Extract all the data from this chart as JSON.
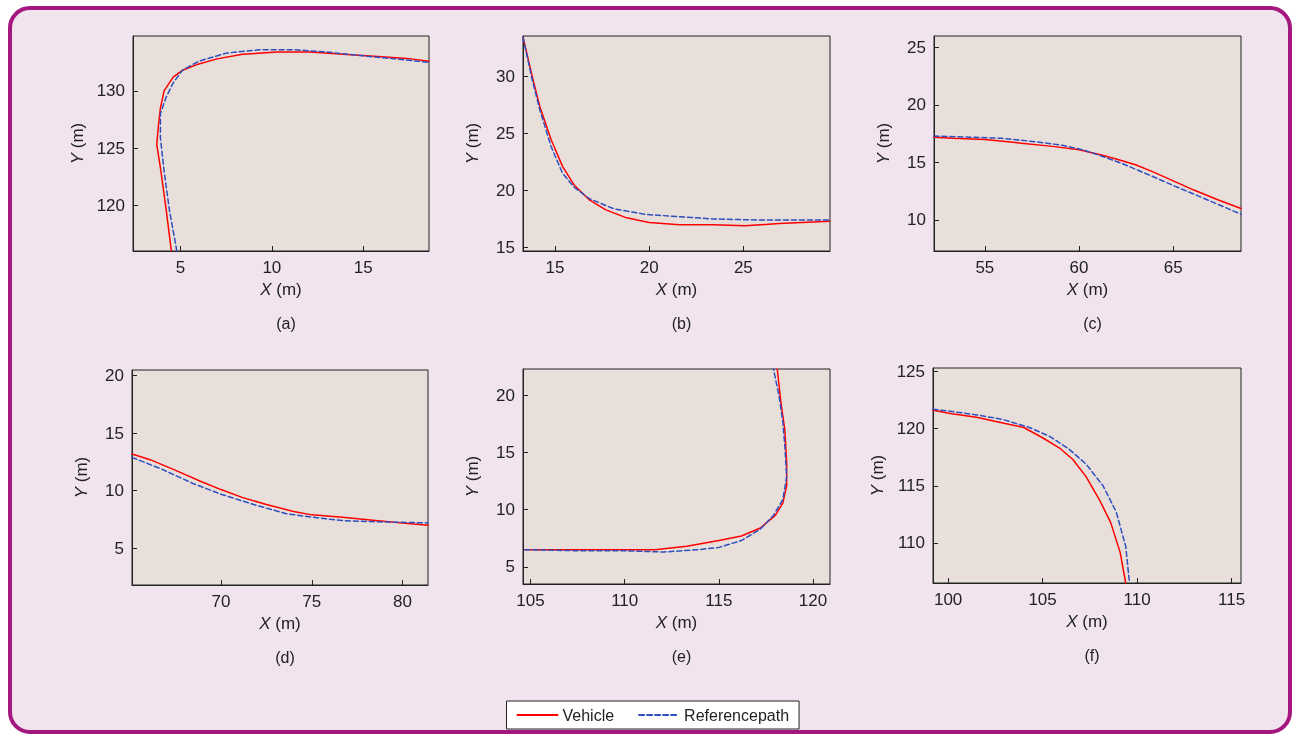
{
  "chart_data": [
    {
      "type": "line",
      "title": "(a)",
      "xlabel": "X (m)",
      "ylabel": "Y (m)",
      "xlim": [
        2.4,
        18.6
      ],
      "ylim": [
        116,
        134.8
      ],
      "xticks": [
        5,
        10,
        15
      ],
      "yticks": [
        120,
        125,
        130
      ],
      "grid": false,
      "series": [
        {
          "color": "#ff0000",
          "line_style": "solid",
          "x": [
            4.5,
            4.2,
            3.9,
            3.7,
            3.8,
            3.9,
            4.1,
            4.6,
            5.1,
            5.9,
            7,
            8.4,
            10.3,
            12.1,
            13.9,
            15.8,
            17.6,
            18.6
          ],
          "values": [
            116,
            119.8,
            123.3,
            125.3,
            127.1,
            128.5,
            130,
            131.2,
            131.8,
            132.3,
            132.8,
            133.2,
            133.4,
            133.4,
            133.2,
            133,
            132.8,
            132.6
          ]
        },
        {
          "color": "#2f4fbf",
          "line_style": "dashed",
          "x": [
            4.8,
            4.4,
            4.1,
            3.9,
            3.9,
            4.2,
            4.6,
            5.1,
            6,
            7.5,
            9.3,
            11.2,
            13,
            14.8,
            16.7,
            18.6
          ],
          "values": [
            116,
            119.5,
            123,
            125.9,
            128,
            129.4,
            130.7,
            131.8,
            132.6,
            133.3,
            133.6,
            133.6,
            133.4,
            133.1,
            132.8,
            132.5
          ]
        }
      ]
    },
    {
      "type": "line",
      "title": "(b)",
      "xlabel": "X (m)",
      "ylabel": "Y (m)",
      "xlim": [
        13.3,
        29.6
      ],
      "ylim": [
        14.7,
        33.5
      ],
      "xticks": [
        15,
        20,
        25
      ],
      "yticks": [
        15,
        20,
        25,
        30
      ],
      "grid": false,
      "series": [
        {
          "color": "#ff0000",
          "line_style": "solid",
          "x": [
            13.3,
            13.8,
            14.2,
            14.8,
            15.4,
            16,
            16.8,
            17.7,
            18.8,
            20,
            21.6,
            23.4,
            25.1,
            26.9,
            29.6
          ],
          "values": [
            33.4,
            29.9,
            27.3,
            24.4,
            22.1,
            20.5,
            19.2,
            18.3,
            17.6,
            17.2,
            17,
            17,
            16.9,
            17.1,
            17.3
          ]
        },
        {
          "color": "#2f4fbf",
          "line_style": "dashed",
          "x": [
            13.3,
            13.8,
            14.2,
            14.8,
            15.4,
            16,
            16.8,
            18.1,
            19.8,
            21.6,
            23.4,
            26,
            29.6
          ],
          "values": [
            33.4,
            29.6,
            27,
            23.8,
            21.5,
            20.3,
            19.3,
            18.4,
            17.9,
            17.7,
            17.5,
            17.4,
            17.4
          ]
        }
      ]
    },
    {
      "type": "line",
      "title": "(c)",
      "xlabel": "X (m)",
      "ylabel": "Y (m)",
      "xlim": [
        52.3,
        68.6
      ],
      "ylim": [
        7.3,
        26
      ],
      "xticks": [
        55,
        60,
        65
      ],
      "yticks": [
        10,
        15,
        20,
        25
      ],
      "grid": false,
      "series": [
        {
          "color": "#ff0000",
          "line_style": "solid",
          "x": [
            52.3,
            53.3,
            55,
            56.8,
            58.6,
            60,
            61.3,
            62.2,
            63,
            63.9,
            65,
            66.1,
            67.3,
            68.6
          ],
          "values": [
            17.2,
            17.1,
            17,
            16.7,
            16.4,
            16.1,
            15.6,
            15.2,
            14.8,
            14.2,
            13.4,
            12.6,
            11.8,
            11
          ]
        },
        {
          "color": "#2f4fbf",
          "line_style": "dashed",
          "x": [
            52.3,
            54.2,
            55.9,
            57.7,
            59.1,
            60.2,
            61.3,
            62.3,
            63.6,
            65,
            66.6,
            68.6
          ],
          "values": [
            17.3,
            17.2,
            17.1,
            16.8,
            16.5,
            16.1,
            15.5,
            14.9,
            14,
            13,
            11.9,
            10.5
          ]
        }
      ]
    },
    {
      "type": "line",
      "title": "(d)",
      "xlabel": "X (m)",
      "ylabel": "Y (m)",
      "xlim": [
        65.1,
        81.4
      ],
      "ylim": [
        1.8,
        20.5
      ],
      "xticks": [
        70,
        75,
        80
      ],
      "yticks": [
        5,
        10,
        15,
        20
      ],
      "grid": false,
      "series": [
        {
          "color": "#ff0000",
          "line_style": "solid",
          "x": [
            65.1,
            66.1,
            67.6,
            68.9,
            70,
            71.2,
            72.5,
            74,
            75,
            76.7,
            78.5,
            80,
            81.4
          ],
          "values": [
            13.2,
            12.7,
            11.7,
            10.8,
            10.1,
            9.4,
            8.8,
            8.2,
            7.9,
            7.7,
            7.4,
            7.2,
            7
          ]
        },
        {
          "color": "#2f4fbf",
          "line_style": "dashed",
          "x": [
            65.1,
            66.7,
            68.5,
            70,
            71.8,
            73.6,
            75,
            76.7,
            78.5,
            81.4
          ],
          "values": [
            12.9,
            11.9,
            10.6,
            9.7,
            8.8,
            8,
            7.7,
            7.4,
            7.3,
            7.2
          ]
        }
      ]
    },
    {
      "type": "line",
      "title": "(e)",
      "xlabel": "X (m)",
      "ylabel": "Y (m)",
      "xlim": [
        104.6,
        120.9
      ],
      "ylim": [
        3.5,
        22.3
      ],
      "xticks": [
        105,
        110,
        115,
        120
      ],
      "yticks": [
        5,
        10,
        15,
        20
      ],
      "grid": false,
      "legend": "bottom",
      "series": [
        {
          "name": "Vehicle",
          "color": "#ff0000",
          "line_style": "solid",
          "x": [
            104.7,
            107.7,
            110,
            111.6,
            113.3,
            115,
            116.2,
            117.2,
            118,
            118.4,
            118.6,
            118.6,
            118.5,
            118.3,
            118.1
          ],
          "values": [
            6.5,
            6.5,
            6.5,
            6.5,
            6.8,
            7.3,
            7.7,
            8.4,
            9.5,
            10.6,
            12.1,
            14.1,
            17,
            19.3,
            22.3
          ]
        },
        {
          "name": "Referencepath",
          "color": "#2f4fbf",
          "line_style": "dashed",
          "x": [
            104.7,
            107.7,
            110,
            112.1,
            113.9,
            115,
            116.2,
            117.2,
            117.9,
            118.4,
            118.6,
            118.5,
            118.4,
            118.2,
            117.9
          ],
          "values": [
            6.5,
            6.4,
            6.4,
            6.3,
            6.5,
            6.7,
            7.3,
            8.3,
            9.5,
            10.9,
            12.9,
            15.6,
            17.6,
            19.9,
            22.3
          ]
        }
      ]
    },
    {
      "type": "line",
      "title": "(f)",
      "xlabel": "X (m)",
      "ylabel": "Y (m)",
      "xlim": [
        99.2,
        115.5
      ],
      "ylim": [
        106.5,
        125.3
      ],
      "xticks": [
        100,
        105,
        110,
        115
      ],
      "yticks": [
        110,
        115,
        120,
        125
      ],
      "grid": false,
      "series": [
        {
          "color": "#ff0000",
          "line_style": "solid",
          "x": [
            99.2,
            100.2,
            101.5,
            102.9,
            104,
            105,
            105.9,
            106.6,
            107.3,
            108,
            108.6,
            109.1,
            109.4
          ],
          "values": [
            121.6,
            121.3,
            121,
            120.5,
            120.1,
            119.2,
            118.3,
            117.3,
            115.8,
            113.8,
            111.8,
            109.2,
            106.5
          ]
        },
        {
          "color": "#2f4fbf",
          "line_style": "dashed",
          "x": [
            99.2,
            100.2,
            101.5,
            102.9,
            104.3,
            105.4,
            106.4,
            107.3,
            108.2,
            108.9,
            109.4,
            109.6
          ],
          "values": [
            121.7,
            121.5,
            121.2,
            120.8,
            120.1,
            119.3,
            118.2,
            116.9,
            115,
            112.7,
            109.7,
            106.5
          ]
        }
      ]
    }
  ]
}
